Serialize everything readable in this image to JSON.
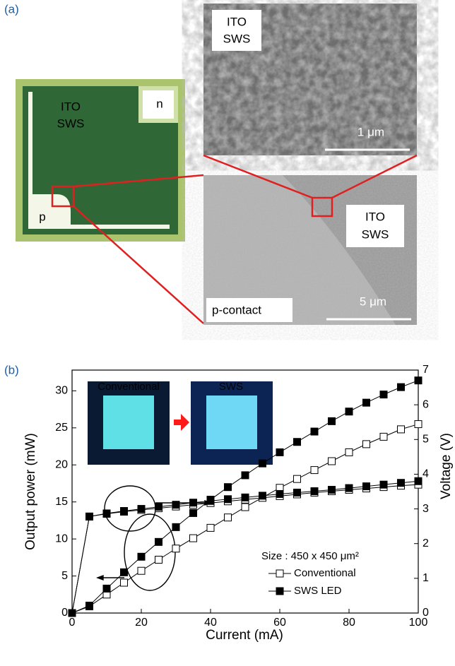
{
  "panel_a": {
    "label": "(a)",
    "chip": {
      "region": [
        "ITO",
        "SWS"
      ],
      "n_pad": "n",
      "p_pad": "p"
    },
    "sem_top": {
      "region": [
        "ITO",
        "SWS"
      ],
      "scale": "1 μm"
    },
    "sem_bottom": {
      "region": [
        "ITO",
        "SWS"
      ],
      "contact": "p-contact",
      "scale": "5 μm"
    }
  },
  "chart_data": {
    "type": "line",
    "panel_label": "(b)",
    "xlabel": "Current (mA)",
    "ylabel": "Output power (mW)",
    "y2label": "Voltage (V)",
    "x": [
      0,
      5,
      10,
      15,
      20,
      25,
      30,
      35,
      40,
      45,
      50,
      55,
      60,
      65,
      70,
      75,
      80,
      85,
      90,
      95,
      100
    ],
    "xlim": [
      0,
      100
    ],
    "xticks": [
      0,
      20,
      40,
      60,
      80,
      100
    ],
    "ylim": [
      0,
      32.8
    ],
    "yticks": [
      0,
      5,
      10,
      15,
      20,
      25,
      30
    ],
    "y2lim": [
      0,
      7
    ],
    "y2ticks": [
      0,
      1,
      2,
      3,
      4,
      5,
      6,
      7
    ],
    "legend_title": "Size : 450 x 450 μm²",
    "inset_labels": [
      "Conventional",
      "SWS"
    ],
    "series": [
      {
        "name": "Conventional",
        "color": "#000000",
        "marker": "open",
        "values": [
          0,
          0.9,
          2.5,
          4.1,
          5.7,
          7.2,
          8.7,
          10.1,
          11.5,
          12.9,
          14.3,
          15.6,
          16.9,
          18.1,
          19.3,
          20.5,
          21.7,
          22.8,
          23.8,
          24.8,
          25.5
        ],
        "y2_values": [
          0,
          2.78,
          2.86,
          2.92,
          2.97,
          3.02,
          3.07,
          3.12,
          3.17,
          3.22,
          3.27,
          3.32,
          3.37,
          3.42,
          3.47,
          3.51,
          3.55,
          3.59,
          3.63,
          3.67,
          3.7
        ]
      },
      {
        "name": "SWS LED",
        "color": "#000000",
        "marker": "filled",
        "values": [
          0,
          1.0,
          3.3,
          5.5,
          7.6,
          9.6,
          11.6,
          13.5,
          15.3,
          17.0,
          18.6,
          20.2,
          21.7,
          23.1,
          24.5,
          25.9,
          27.2,
          28.4,
          29.5,
          30.5,
          31.4
        ],
        "y2_values": [
          0,
          2.78,
          2.87,
          2.94,
          3.0,
          3.06,
          3.12,
          3.18,
          3.23,
          3.28,
          3.33,
          3.38,
          3.43,
          3.47,
          3.51,
          3.55,
          3.6,
          3.65,
          3.7,
          3.75,
          3.8
        ]
      }
    ]
  }
}
